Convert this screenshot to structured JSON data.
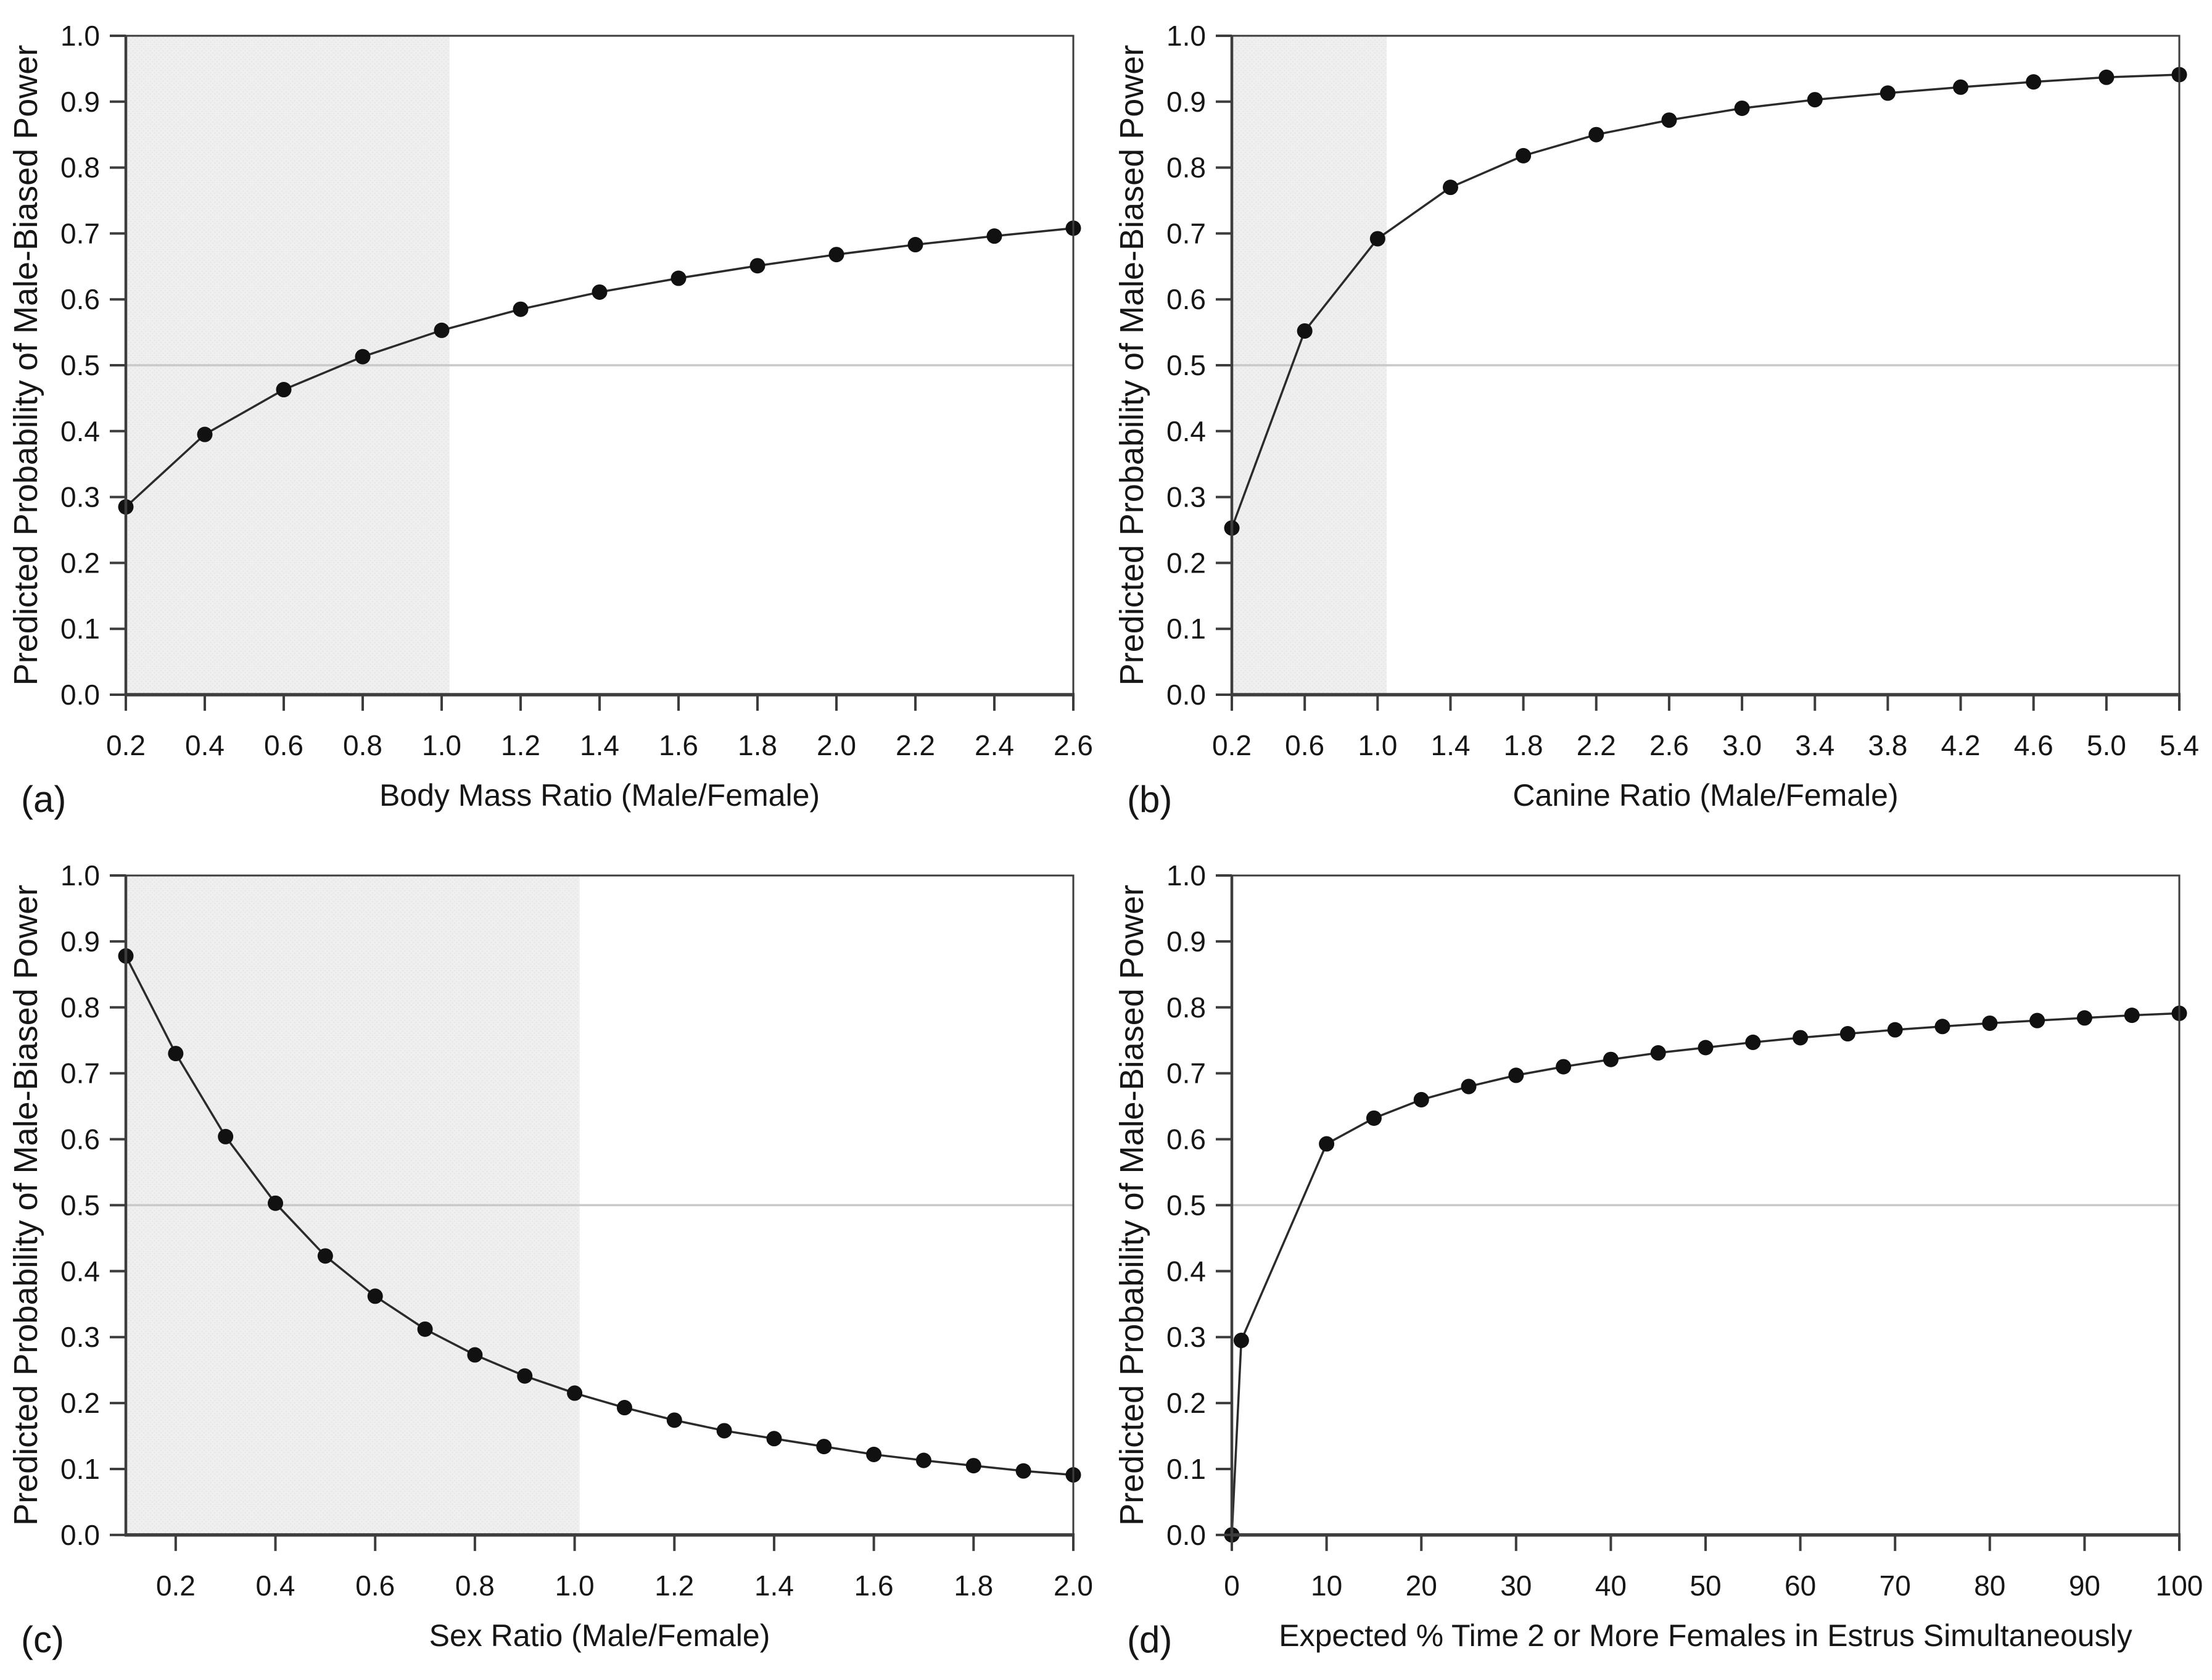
{
  "figure": {
    "description_visible_text_only": true,
    "background": "#ffffff",
    "shared_ylabel": "Predicted Probability of Male-Biased Power"
  },
  "colors": {
    "marker": "#111111",
    "line": "#2b2b2b",
    "frame": "#3d3d3d",
    "text": "#161616",
    "shade_bg": "#efefef",
    "shade_dot": "#e3e3e3",
    "ref_line": "#c9c9c9",
    "background": "#ffffff"
  },
  "chart_data": [
    {
      "type": "line",
      "panel_label": "(a)",
      "xlabel": "Body Mass Ratio (Male/Female)",
      "ylabel": "Predicted Probability of Male-Biased Power",
      "xlim": [
        0.2,
        2.6
      ],
      "ylim": [
        0.0,
        1.0
      ],
      "xtick_labels": [
        "0.2",
        "0.4",
        "0.6",
        "0.8",
        "1.0",
        "1.2",
        "1.4",
        "1.6",
        "1.8",
        "2.0",
        "2.2",
        "2.4",
        "2.6"
      ],
      "ytick_labels": [
        "0.0",
        "0.1",
        "0.2",
        "0.3",
        "0.4",
        "0.5",
        "0.6",
        "0.7",
        "0.8",
        "0.9",
        "1.0"
      ],
      "grid": false,
      "legend": null,
      "shade": [
        0.2,
        1.02
      ],
      "ref_line_y": 0.5,
      "x": [
        0.2,
        0.4,
        0.6,
        0.8,
        1.0,
        1.2,
        1.4,
        1.6,
        1.8,
        2.0,
        2.2,
        2.4,
        2.6
      ],
      "y": [
        0.285,
        0.395,
        0.463,
        0.513,
        0.553,
        0.585,
        0.611,
        0.632,
        0.651,
        0.668,
        0.683,
        0.696,
        0.708
      ]
    },
    {
      "type": "line",
      "panel_label": "(b)",
      "xlabel": "Canine Ratio (Male/Female)",
      "ylabel": "Predicted Probability of Male-Biased Power",
      "xlim": [
        0.2,
        5.4
      ],
      "ylim": [
        0.0,
        1.0
      ],
      "xtick_labels": [
        "0.2",
        "0.6",
        "1.0",
        "1.4",
        "1.8",
        "2.2",
        "2.6",
        "3.0",
        "3.4",
        "3.8",
        "4.2",
        "4.6",
        "5.0",
        "5.4"
      ],
      "ytick_labels": [
        "0.0",
        "0.1",
        "0.2",
        "0.3",
        "0.4",
        "0.5",
        "0.6",
        "0.7",
        "0.8",
        "0.9",
        "1.0"
      ],
      "grid": false,
      "legend": null,
      "shade": [
        0.2,
        1.05
      ],
      "ref_line_y": 0.5,
      "x": [
        0.2,
        0.6,
        1.0,
        1.4,
        1.8,
        2.2,
        2.6,
        3.0,
        3.4,
        3.8,
        4.2,
        4.6,
        5.0,
        5.4
      ],
      "y": [
        0.253,
        0.552,
        0.692,
        0.77,
        0.818,
        0.85,
        0.872,
        0.89,
        0.903,
        0.913,
        0.922,
        0.93,
        0.937,
        0.941
      ]
    },
    {
      "type": "line",
      "panel_label": "(c)",
      "xlabel": "Sex Ratio (Male/Female)",
      "ylabel": "Predicted Probability of Male-Biased Power",
      "xlim": [
        0.1,
        2.0
      ],
      "ylim": [
        0.0,
        1.0
      ],
      "xtick_labels": [
        "0.2",
        "0.4",
        "0.6",
        "0.8",
        "1.0",
        "1.2",
        "1.4",
        "1.6",
        "1.8",
        "2.0"
      ],
      "ytick_labels": [
        "0.0",
        "0.1",
        "0.2",
        "0.3",
        "0.4",
        "0.5",
        "0.6",
        "0.7",
        "0.8",
        "0.9",
        "1.0"
      ],
      "grid": false,
      "legend": null,
      "shade": [
        0.1,
        1.01
      ],
      "ref_line_y": 0.5,
      "x": [
        0.1,
        0.2,
        0.3,
        0.4,
        0.5,
        0.6,
        0.7,
        0.8,
        0.9,
        1.0,
        1.1,
        1.2,
        1.3,
        1.4,
        1.5,
        1.6,
        1.7,
        1.8,
        1.9,
        2.0
      ],
      "y": [
        0.878,
        0.73,
        0.604,
        0.503,
        0.423,
        0.362,
        0.312,
        0.273,
        0.241,
        0.215,
        0.193,
        0.174,
        0.158,
        0.146,
        0.134,
        0.122,
        0.113,
        0.105,
        0.097,
        0.091
      ]
    },
    {
      "type": "line",
      "panel_label": "(d)",
      "xlabel": "Expected % Time 2 or More Females in Estrus Simultaneously",
      "ylabel": "Predicted Probability of Male-Biased Power",
      "xlim": [
        0,
        100
      ],
      "ylim": [
        0.0,
        1.0
      ],
      "xtick_labels": [
        "0",
        "10",
        "20",
        "30",
        "40",
        "50",
        "60",
        "70",
        "80",
        "90",
        "100"
      ],
      "ytick_labels": [
        "0.0",
        "0.1",
        "0.2",
        "0.3",
        "0.4",
        "0.5",
        "0.6",
        "0.7",
        "0.8",
        "0.9",
        "1.0"
      ],
      "grid": false,
      "legend": null,
      "shade": null,
      "ref_line_y": 0.5,
      "x": [
        0,
        1,
        10,
        15,
        20,
        25,
        30,
        35,
        40,
        45,
        50,
        55,
        60,
        65,
        70,
        75,
        80,
        85,
        90,
        95,
        100
      ],
      "y": [
        0.0,
        0.295,
        0.593,
        0.632,
        0.66,
        0.68,
        0.697,
        0.71,
        0.721,
        0.731,
        0.739,
        0.747,
        0.754,
        0.76,
        0.766,
        0.771,
        0.776,
        0.78,
        0.784,
        0.788,
        0.791
      ]
    }
  ]
}
